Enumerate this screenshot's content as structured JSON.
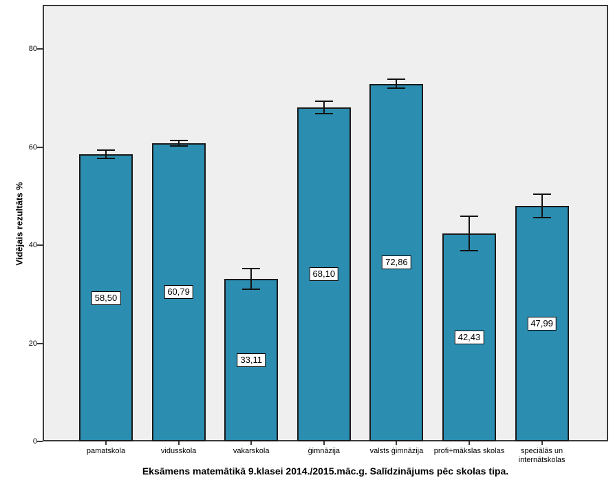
{
  "chart_data": {
    "type": "bar",
    "title": "Eksāmens matemātikā 9.klasei 2014./2015.māc.g. Salīdzinājums pēc skolas tipa.",
    "ylabel": "Vidējais rezultāts %",
    "xlabel": "",
    "categories": [
      "pamatskola",
      "vidusskola",
      "vakarskola",
      "ģimnāzija",
      "valsts ģimnāzija",
      "profi+mākslas skolas",
      "speciālās un internātskolas"
    ],
    "values": [
      58.5,
      60.79,
      33.11,
      68.1,
      72.86,
      42.43,
      47.99
    ],
    "value_labels": [
      "58,50",
      "60,79",
      "33,11",
      "68,10",
      "72,86",
      "42,43",
      "47,99"
    ],
    "error_bars_plus_minus": [
      0.85,
      0.55,
      2.1,
      1.25,
      0.9,
      3.5,
      2.4
    ],
    "yticks": [
      0,
      20,
      40,
      60,
      80
    ],
    "ylim": [
      0,
      89
    ],
    "grid": false,
    "legend": "none",
    "colors": {
      "bar_fill": "#2B8DB0",
      "bar_border": "#1a1a1a",
      "plot_background": "#EFEFEF",
      "frame": "#3a3a3a",
      "error_bar": "#111111",
      "label_box_background": "#ffffff",
      "label_box_border": "#000000"
    }
  }
}
